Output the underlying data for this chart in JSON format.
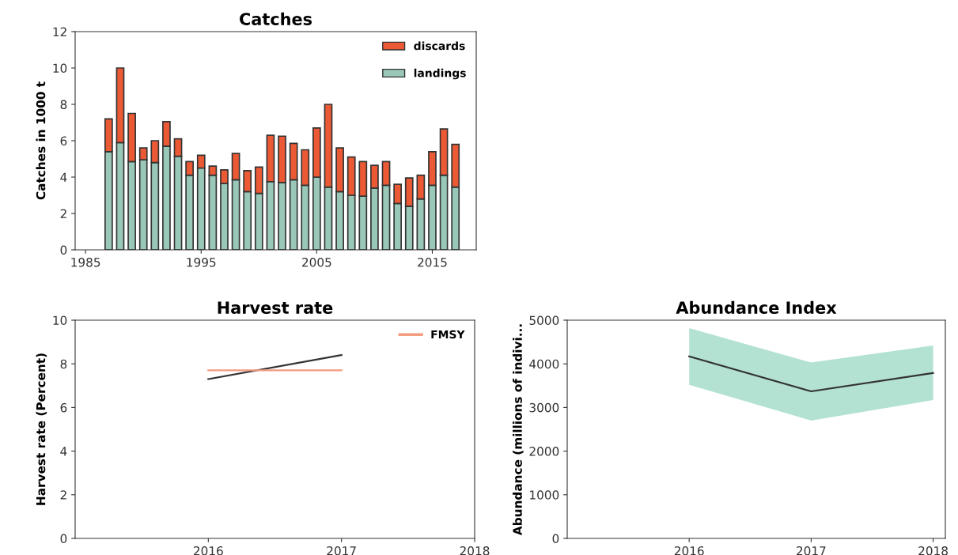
{
  "chart_data": [
    {
      "type": "bar",
      "title": "Catches",
      "ylabel": "Catches in 1000 t",
      "stacked": true,
      "x": [
        1987,
        1988,
        1989,
        1990,
        1991,
        1992,
        1993,
        1994,
        1995,
        1996,
        1997,
        1998,
        1999,
        2000,
        2001,
        2002,
        2003,
        2004,
        2005,
        2006,
        2007,
        2008,
        2009,
        2010,
        2011,
        2012,
        2013,
        2014,
        2015,
        2016,
        2017
      ],
      "series": [
        {
          "name": "landings",
          "color": "#99c7b8",
          "values": [
            5.4,
            5.9,
            4.85,
            4.95,
            4.8,
            5.7,
            5.15,
            4.1,
            4.5,
            4.1,
            3.65,
            3.85,
            3.2,
            3.1,
            3.75,
            3.7,
            3.85,
            3.55,
            4.0,
            3.45,
            3.2,
            3.0,
            2.95,
            3.4,
            3.55,
            2.55,
            2.4,
            2.8,
            3.55,
            4.1,
            3.45
          ]
        },
        {
          "name": "discards",
          "color": "#eb5a35",
          "values": [
            1.8,
            4.1,
            2.65,
            0.65,
            1.2,
            1.35,
            0.95,
            0.75,
            0.7,
            0.5,
            0.75,
            1.45,
            1.15,
            1.45,
            2.55,
            2.55,
            2.0,
            1.95,
            2.7,
            4.55,
            2.4,
            2.1,
            1.9,
            1.25,
            1.3,
            1.05,
            1.55,
            1.3,
            1.85,
            2.55,
            2.35
          ]
        }
      ],
      "xlim": [
        1984.1,
        2018.8
      ],
      "xticks": [
        1985,
        1995,
        2005,
        2015
      ],
      "ylim": [
        0,
        12
      ],
      "yticks": [
        0,
        2,
        4,
        6,
        8,
        10,
        12
      ],
      "legend": "top right",
      "grid": false
    },
    {
      "type": "line",
      "title": "Harvest rate",
      "ylabel": "Harvest rate (Percent)",
      "series": [
        {
          "color": "#333333",
          "x": [
            2016,
            2017
          ],
          "values": [
            7.3,
            8.4
          ]
        },
        {
          "name": "FMSY",
          "color": "#f39a7c",
          "x": [
            2016,
            2017
          ],
          "values": [
            7.7,
            7.7
          ]
        }
      ],
      "xlim": [
        2015,
        2018
      ],
      "xticks": [
        2016,
        2017,
        2018
      ],
      "ylim": [
        0,
        10
      ],
      "yticks": [
        0,
        2,
        4,
        6,
        8,
        10
      ],
      "legend": "top right",
      "grid": false
    },
    {
      "type": "line",
      "title": "Abundance Index",
      "ylabel": "Abundance (millions of indivi...",
      "series": [
        {
          "color": "#333333",
          "x": [
            2016,
            2017,
            2018
          ],
          "values": [
            4170,
            3370,
            3790
          ],
          "lower": [
            3520,
            2700,
            3170
          ],
          "upper": [
            4820,
            4030,
            4420
          ]
        }
      ],
      "xlim": [
        2015,
        2018.1
      ],
      "xticks": [
        2016,
        2017,
        2018
      ],
      "ylim": [
        0,
        5000
      ],
      "yticks": [
        0,
        1000,
        2000,
        3000,
        4000,
        5000
      ],
      "grid": false
    }
  ]
}
